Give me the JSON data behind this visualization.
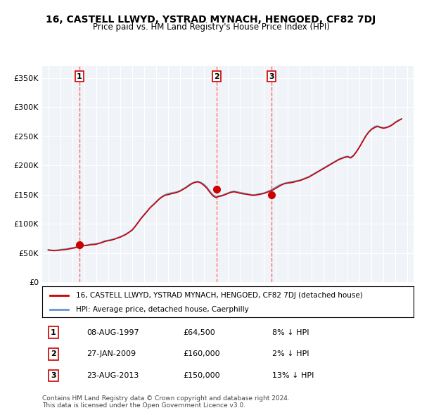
{
  "title": "16, CASTELL LLWYD, YSTRAD MYNACH, HENGOED, CF82 7DJ",
  "subtitle": "Price paid vs. HM Land Registry's House Price Index (HPI)",
  "legend_property": "16, CASTELL LLWYD, YSTRAD MYNACH, HENGOED, CF82 7DJ (detached house)",
  "legend_hpi": "HPI: Average price, detached house, Caerphilly",
  "ylabel": "",
  "xlim": [
    1994.5,
    2025.5
  ],
  "ylim": [
    0,
    370000
  ],
  "yticks": [
    0,
    50000,
    100000,
    150000,
    200000,
    250000,
    300000,
    350000
  ],
  "ytick_labels": [
    "£0",
    "£50K",
    "£100K",
    "£150K",
    "£200K",
    "£250K",
    "£300K",
    "£350K"
  ],
  "xticks": [
    1995,
    1996,
    1997,
    1998,
    1999,
    2000,
    2001,
    2002,
    2003,
    2004,
    2005,
    2006,
    2007,
    2008,
    2009,
    2010,
    2011,
    2012,
    2013,
    2014,
    2015,
    2016,
    2017,
    2018,
    2019,
    2020,
    2021,
    2022,
    2023,
    2024,
    2025
  ],
  "property_color": "#cc0000",
  "hpi_color": "#6699cc",
  "sale_marker_color": "#cc0000",
  "vline_color": "#ff6666",
  "bg_color": "#f0f4f8",
  "plot_bg": "#f0f4f8",
  "transactions": [
    {
      "num": 1,
      "date": "08-AUG-1997",
      "price": 64500,
      "pct": "8%",
      "dir": "↓",
      "year": 1997.6
    },
    {
      "num": 2,
      "date": "27-JAN-2009",
      "price": 160000,
      "pct": "2%",
      "dir": "↓",
      "year": 2009.08
    },
    {
      "num": 3,
      "date": "23-AUG-2013",
      "price": 150000,
      "pct": "13%",
      "dir": "↓",
      "year": 2013.65
    }
  ],
  "footer": "Contains HM Land Registry data © Crown copyright and database right 2024.\nThis data is licensed under the Open Government Licence v3.0.",
  "hpi_data": {
    "years": [
      1995.0,
      1995.25,
      1995.5,
      1995.75,
      1996.0,
      1996.25,
      1996.5,
      1996.75,
      1997.0,
      1997.25,
      1997.5,
      1997.75,
      1998.0,
      1998.25,
      1998.5,
      1998.75,
      1999.0,
      1999.25,
      1999.5,
      1999.75,
      2000.0,
      2000.25,
      2000.5,
      2000.75,
      2001.0,
      2001.25,
      2001.5,
      2001.75,
      2002.0,
      2002.25,
      2002.5,
      2002.75,
      2003.0,
      2003.25,
      2003.5,
      2003.75,
      2004.0,
      2004.25,
      2004.5,
      2004.75,
      2005.0,
      2005.25,
      2005.5,
      2005.75,
      2006.0,
      2006.25,
      2006.5,
      2006.75,
      2007.0,
      2007.25,
      2007.5,
      2007.75,
      2008.0,
      2008.25,
      2008.5,
      2008.75,
      2009.0,
      2009.25,
      2009.5,
      2009.75,
      2010.0,
      2010.25,
      2010.5,
      2010.75,
      2011.0,
      2011.25,
      2011.5,
      2011.75,
      2012.0,
      2012.25,
      2012.5,
      2012.75,
      2013.0,
      2013.25,
      2013.5,
      2013.75,
      2014.0,
      2014.25,
      2014.5,
      2014.75,
      2015.0,
      2015.25,
      2015.5,
      2015.75,
      2016.0,
      2016.25,
      2016.5,
      2016.75,
      2017.0,
      2017.25,
      2017.5,
      2017.75,
      2018.0,
      2018.25,
      2018.5,
      2018.75,
      2019.0,
      2019.25,
      2019.5,
      2019.75,
      2020.0,
      2020.25,
      2020.5,
      2020.75,
      2021.0,
      2021.25,
      2021.5,
      2021.75,
      2022.0,
      2022.25,
      2022.5,
      2022.75,
      2023.0,
      2023.25,
      2023.5,
      2023.75,
      2024.0,
      2024.25,
      2024.5
    ],
    "values": [
      56000,
      55000,
      54500,
      55000,
      56000,
      56500,
      57000,
      58000,
      59000,
      60000,
      61000,
      62000,
      63000,
      64000,
      65000,
      65500,
      66000,
      67000,
      69000,
      71000,
      72000,
      73000,
      74000,
      76000,
      78000,
      80000,
      83000,
      86000,
      90000,
      96000,
      103000,
      110000,
      116000,
      122000,
      128000,
      133000,
      138000,
      143000,
      147000,
      150000,
      152000,
      153000,
      154000,
      155000,
      157000,
      160000,
      163000,
      167000,
      170000,
      172000,
      173000,
      171000,
      168000,
      163000,
      156000,
      150000,
      147000,
      148000,
      149000,
      151000,
      153000,
      155000,
      156000,
      155000,
      154000,
      153000,
      152000,
      151000,
      150000,
      150000,
      151000,
      152000,
      153000,
      155000,
      157000,
      160000,
      163000,
      166000,
      168000,
      170000,
      171000,
      172000,
      173000,
      174000,
      175000,
      177000,
      179000,
      181000,
      184000,
      187000,
      190000,
      193000,
      196000,
      199000,
      202000,
      205000,
      208000,
      211000,
      213000,
      215000,
      216000,
      214000,
      218000,
      225000,
      233000,
      242000,
      251000,
      258000,
      263000,
      267000,
      268000,
      266000,
      265000,
      266000,
      268000,
      271000,
      275000,
      278000,
      280000
    ]
  },
  "property_line_data": {
    "years": [
      1995.0,
      1995.25,
      1995.5,
      1995.75,
      1996.0,
      1996.25,
      1996.5,
      1996.75,
      1997.0,
      1997.25,
      1997.5,
      1997.75,
      1998.0,
      1998.25,
      1998.5,
      1998.75,
      1999.0,
      1999.25,
      1999.5,
      1999.75,
      2000.0,
      2000.25,
      2000.5,
      2000.75,
      2001.0,
      2001.25,
      2001.5,
      2001.75,
      2002.0,
      2002.25,
      2002.5,
      2002.75,
      2003.0,
      2003.25,
      2003.5,
      2003.75,
      2004.0,
      2004.25,
      2004.5,
      2004.75,
      2005.0,
      2005.25,
      2005.5,
      2005.75,
      2006.0,
      2006.25,
      2006.5,
      2006.75,
      2007.0,
      2007.25,
      2007.5,
      2007.75,
      2008.0,
      2008.25,
      2008.5,
      2008.75,
      2009.0,
      2009.25,
      2009.5,
      2009.75,
      2010.0,
      2010.25,
      2010.5,
      2010.75,
      2011.0,
      2011.25,
      2011.5,
      2011.75,
      2012.0,
      2012.25,
      2012.5,
      2012.75,
      2013.0,
      2013.25,
      2013.5,
      2013.75,
      2014.0,
      2014.25,
      2014.5,
      2014.75,
      2015.0,
      2015.25,
      2015.5,
      2015.75,
      2016.0,
      2016.25,
      2016.5,
      2016.75,
      2017.0,
      2017.25,
      2017.5,
      2017.75,
      2018.0,
      2018.25,
      2018.5,
      2018.75,
      2019.0,
      2019.25,
      2019.5,
      2019.75,
      2020.0,
      2020.25,
      2020.5,
      2020.75,
      2021.0,
      2021.25,
      2021.5,
      2021.75,
      2022.0,
      2022.25,
      2022.5,
      2022.75,
      2023.0,
      2023.25,
      2023.5,
      2023.75,
      2024.0,
      2024.25,
      2024.5
    ],
    "values": [
      55000,
      54500,
      54000,
      54500,
      55000,
      55500,
      56000,
      57000,
      58000,
      59000,
      60500,
      62000,
      62500,
      63000,
      64000,
      64500,
      65000,
      66500,
      68000,
      70000,
      71000,
      72000,
      73500,
      75500,
      77000,
      79500,
      82000,
      85500,
      89000,
      95000,
      102000,
      109000,
      115000,
      121000,
      127500,
      132000,
      137000,
      142000,
      146000,
      149000,
      150000,
      151500,
      152500,
      154000,
      156000,
      159000,
      162000,
      165500,
      169000,
      171000,
      172000,
      170000,
      166000,
      161000,
      154000,
      148000,
      145000,
      147000,
      148000,
      150000,
      152000,
      154000,
      155000,
      154000,
      152500,
      151500,
      151000,
      150000,
      149000,
      149000,
      150000,
      151000,
      152000,
      154000,
      156000,
      158000,
      161000,
      164000,
      167000,
      169000,
      170000,
      170500,
      171500,
      173000,
      174000,
      176000,
      178000,
      180000,
      183000,
      186000,
      189000,
      192000,
      195000,
      198000,
      201000,
      204000,
      207000,
      210000,
      212000,
      214000,
      215000,
      213000,
      217000,
      224000,
      232000,
      241000,
      250000,
      257000,
      262000,
      265000,
      267000,
      265000,
      264000,
      265000,
      267000,
      270000,
      274000,
      277000,
      280000
    ]
  }
}
